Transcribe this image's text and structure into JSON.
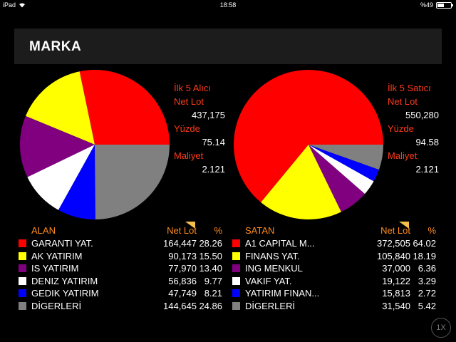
{
  "status": {
    "device": "iPad",
    "time": "18:58",
    "battery": "%49",
    "battery_level": 0.49
  },
  "header": {
    "title": "MARKA"
  },
  "left_panel": {
    "info": [
      {
        "label": "İlk 5 Alıcı",
        "value": ""
      },
      {
        "label": "Net Lot",
        "value": "437,175"
      },
      {
        "label": "Yüzde",
        "value": "75.14"
      },
      {
        "label": "Maliyet",
        "value": "2.121"
      }
    ],
    "table": {
      "col_name": "ALAN",
      "col_lot": "Net Lot",
      "col_pct": "%",
      "rows": [
        {
          "name": "GARANTI YAT.",
          "lot": "164,447",
          "pct": "28.26",
          "color": "#ff0000"
        },
        {
          "name": "AK YATIRIM",
          "lot": "90,173",
          "pct": "15.50",
          "color": "#ffff00"
        },
        {
          "name": "IS YATIRIM",
          "lot": "77,970",
          "pct": "13.40",
          "color": "#800080"
        },
        {
          "name": "DENIZ YATIRIM",
          "lot": "56,836",
          "pct": "9.77",
          "color": "#ffffff"
        },
        {
          "name": "GEDIK YATIRIM",
          "lot": "47,749",
          "pct": "8.21",
          "color": "#0000ff"
        },
        {
          "name": "DİGERLERİ",
          "lot": "144,645",
          "pct": "24.86",
          "color": "#808080"
        }
      ]
    }
  },
  "right_panel": {
    "info": [
      {
        "label": "İlk 5 Satıcı",
        "value": ""
      },
      {
        "label": "Net Lot",
        "value": "550,280"
      },
      {
        "label": "Yüzde",
        "value": "94.58"
      },
      {
        "label": "Maliyet",
        "value": "2.121"
      }
    ],
    "table": {
      "col_name": "SATAN",
      "col_lot": "Net Lot",
      "col_pct": "%",
      "rows": [
        {
          "name": "A1 CAPITAL M...",
          "lot": "372,505",
          "pct": "64.02",
          "color": "#ff0000"
        },
        {
          "name": "FINANS YAT.",
          "lot": "105,840",
          "pct": "18.19",
          "color": "#ffff00"
        },
        {
          "name": "ING MENKUL",
          "lot": "37,000",
          "pct": "6.36",
          "color": "#800080"
        },
        {
          "name": "VAKIF YAT.",
          "lot": "19,122",
          "pct": "3.29",
          "color": "#ffffff"
        },
        {
          "name": "YATIRIM FINAN...",
          "lot": "15,813",
          "pct": "2.72",
          "color": "#0000ff"
        },
        {
          "name": "DİGERLERİ",
          "lot": "31,540",
          "pct": "5.42",
          "color": "#808080"
        }
      ]
    }
  },
  "speed_button": {
    "label": "1X"
  },
  "chart_data": [
    {
      "type": "pie",
      "categories": [
        "GARANTI YAT.",
        "AK YATIRIM",
        "IS YATIRIM",
        "DENIZ YATIRIM",
        "GEDIK YATIRIM",
        "DİGERLERİ"
      ],
      "values": [
        28.26,
        15.5,
        13.4,
        9.77,
        8.21,
        24.86
      ],
      "colors": [
        "#ff0000",
        "#ffff00",
        "#800080",
        "#ffffff",
        "#0000ff",
        "#808080"
      ]
    },
    {
      "type": "pie",
      "categories": [
        "A1 CAPITAL M...",
        "FINANS YAT.",
        "ING MENKUL",
        "VAKIF YAT.",
        "YATIRIM FINAN...",
        "DİGERLERİ"
      ],
      "values": [
        64.02,
        18.19,
        6.36,
        3.29,
        2.72,
        5.42
      ],
      "colors": [
        "#ff0000",
        "#ffff00",
        "#800080",
        "#ffffff",
        "#0000ff",
        "#808080"
      ]
    }
  ]
}
